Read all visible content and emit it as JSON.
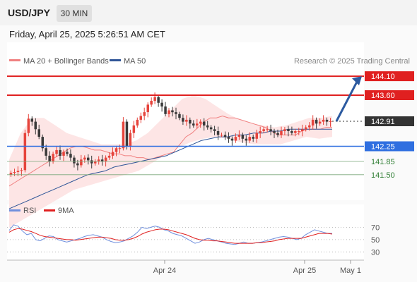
{
  "header": {
    "symbol": "USD/JPY",
    "interval": "30 MIN",
    "datetime": "Friday, April 25, 2025 5:26:51 AM CET"
  },
  "legend": {
    "ma20_label": "MA 20 + Bollinger Bands",
    "ma50_label": "MA 50",
    "credit": "Research © 2025 Trading Central",
    "rsi_label": "RSI",
    "rsi_ma_label": "9MA"
  },
  "colors": {
    "candle_up": "#e6443c",
    "candle_down": "#3a3a3a",
    "ma20": "#f08080",
    "ma50": "#2f5597",
    "bollinger_fill": "#fde0e0",
    "resistance": "#e02020",
    "support": "#2f6fe0",
    "target": "#2e7d32",
    "arrow": "#2c5aa0",
    "rsi": "#6f8fdd",
    "rsi_ma": "#e02020"
  },
  "chart_data": [
    {
      "type": "candlestick",
      "title": "",
      "ylim": [
        140.0,
        145.0
      ],
      "x_ticks": [
        "Apr 24",
        "Apr 25",
        "May 1"
      ],
      "last_price": 142.91,
      "levels": [
        {
          "value": 144.1,
          "label": "144.10",
          "kind": "resistance",
          "style": "solid"
        },
        {
          "value": 143.6,
          "label": "143.60",
          "kind": "resistance",
          "style": "solid"
        },
        {
          "value": 142.91,
          "label": "142.91",
          "kind": "last",
          "style": "dotted"
        },
        {
          "value": 142.25,
          "label": "142.25",
          "kind": "pivot",
          "style": "solid"
        },
        {
          "value": 141.85,
          "label": "141.85",
          "kind": "support",
          "style": "thin"
        },
        {
          "value": 141.5,
          "label": "141.50",
          "kind": "support",
          "style": "thin"
        }
      ],
      "close": [
        141.55,
        141.57,
        141.6,
        141.62,
        142.6,
        142.98,
        142.9,
        142.7,
        142.5,
        142.2,
        142.0,
        141.85,
        142.05,
        142.15,
        142.0,
        142.1,
        142.05,
        141.95,
        141.8,
        141.75,
        141.9,
        141.95,
        141.88,
        141.8,
        141.85,
        141.9,
        141.85,
        141.95,
        142.0,
        142.1,
        142.2,
        142.2,
        142.9,
        142.25,
        142.6,
        142.8,
        142.95,
        143.05,
        143.15,
        143.35,
        143.45,
        143.55,
        143.4,
        143.3,
        143.1,
        143.2,
        143.15,
        143.1,
        143.0,
        142.9,
        142.95,
        142.85,
        142.8,
        142.85,
        142.9,
        142.8,
        142.75,
        142.7,
        142.65,
        142.55,
        142.55,
        142.5,
        142.45,
        142.4,
        142.5,
        142.55,
        142.45,
        142.4,
        142.5,
        142.45,
        142.6,
        142.65,
        142.7,
        142.7,
        142.65,
        142.6,
        142.55,
        142.65,
        142.7,
        142.65,
        142.6,
        142.65,
        142.65,
        142.7,
        142.75,
        142.8,
        142.95,
        142.85,
        142.9,
        142.95,
        142.9,
        142.91
      ],
      "ma20_y": [
        141.2,
        141.3,
        141.4,
        141.5,
        141.6,
        141.7,
        141.8,
        141.9,
        142.0,
        142.1,
        142.2,
        142.25,
        142.25,
        142.2,
        142.15,
        142.15,
        142.1,
        142.05,
        142.05,
        142.0,
        142.0,
        141.95,
        141.95,
        141.9,
        141.95,
        142.0,
        142.05,
        142.1,
        142.3,
        142.5,
        142.6,
        142.75,
        142.9,
        143.0,
        143.0,
        143.05,
        143.0,
        143.0,
        142.95,
        142.9,
        142.85,
        142.8,
        142.75,
        142.65,
        142.55,
        142.55,
        142.55,
        142.55,
        142.65,
        142.7,
        142.7,
        142.7,
        142.75,
        142.75
      ],
      "ma50_y": [
        140.6,
        140.7,
        140.8,
        140.9,
        141.0,
        141.1,
        141.2,
        141.3,
        141.4,
        141.5,
        141.55,
        141.6,
        141.7,
        141.75,
        141.8,
        141.85,
        141.9,
        141.95,
        142.0,
        142.1,
        142.2,
        142.3,
        142.4,
        142.45,
        142.5,
        142.5,
        142.55,
        142.55,
        142.6,
        142.6,
        142.65,
        142.65,
        142.7,
        142.7,
        142.7,
        142.7,
        142.7,
        142.7
      ],
      "bb_upper_y": [
        141.9,
        142.6,
        143.0,
        143.0,
        142.8,
        142.6,
        142.5,
        142.4,
        142.3,
        142.3,
        142.3,
        142.4,
        142.6,
        142.9,
        143.2,
        143.5,
        143.6,
        143.5,
        143.3,
        143.1,
        142.95,
        142.85,
        142.8,
        142.75,
        142.8,
        142.9,
        143.0,
        143.0,
        143.05
      ],
      "bb_lower_y": [
        140.1,
        140.3,
        140.5,
        140.7,
        140.9,
        141.1,
        141.2,
        141.3,
        141.4,
        141.5,
        141.6,
        141.8,
        142.0,
        142.2,
        142.35,
        142.45,
        142.5,
        142.45,
        142.35,
        142.3,
        142.3,
        142.3,
        142.4,
        142.5,
        142.45,
        142.5
      ]
    },
    {
      "type": "line",
      "title": "RSI",
      "ylim": [
        20,
        90
      ],
      "y_ticks": [
        70,
        50,
        30
      ],
      "series": [
        {
          "name": "RSI",
          "values": [
            65,
            74,
            72,
            64,
            58,
            60,
            50,
            48,
            52,
            56,
            55,
            50,
            48,
            46,
            48,
            50,
            52,
            55,
            57,
            58,
            56,
            54,
            50,
            47,
            45,
            46,
            48,
            52,
            56,
            62,
            70,
            68,
            70,
            72,
            70,
            66,
            64,
            60,
            58,
            56,
            52,
            48,
            44,
            46,
            50,
            52,
            50,
            48,
            46,
            44,
            43,
            42,
            44,
            46,
            44,
            44,
            45,
            46,
            48,
            50,
            52,
            54,
            55,
            54,
            52,
            50,
            52,
            58,
            62,
            66,
            64,
            62,
            60,
            60
          ]
        },
        {
          "name": "9MA",
          "values": [
            62,
            66,
            68,
            67,
            65,
            63,
            60,
            57,
            55,
            54,
            53,
            52,
            51,
            50,
            50,
            49,
            50,
            51,
            52,
            53,
            54,
            54,
            53,
            52,
            50,
            49,
            49,
            50,
            52,
            55,
            59,
            62,
            64,
            66,
            67,
            67,
            66,
            64,
            62,
            60,
            58,
            55,
            52,
            50,
            49,
            49,
            48,
            48,
            47,
            46,
            45,
            44,
            44,
            44,
            44,
            44,
            45,
            45,
            46,
            47,
            48,
            50,
            51,
            52,
            52,
            52,
            52,
            54,
            56,
            58,
            60,
            60,
            60,
            59
          ]
        }
      ]
    }
  ]
}
